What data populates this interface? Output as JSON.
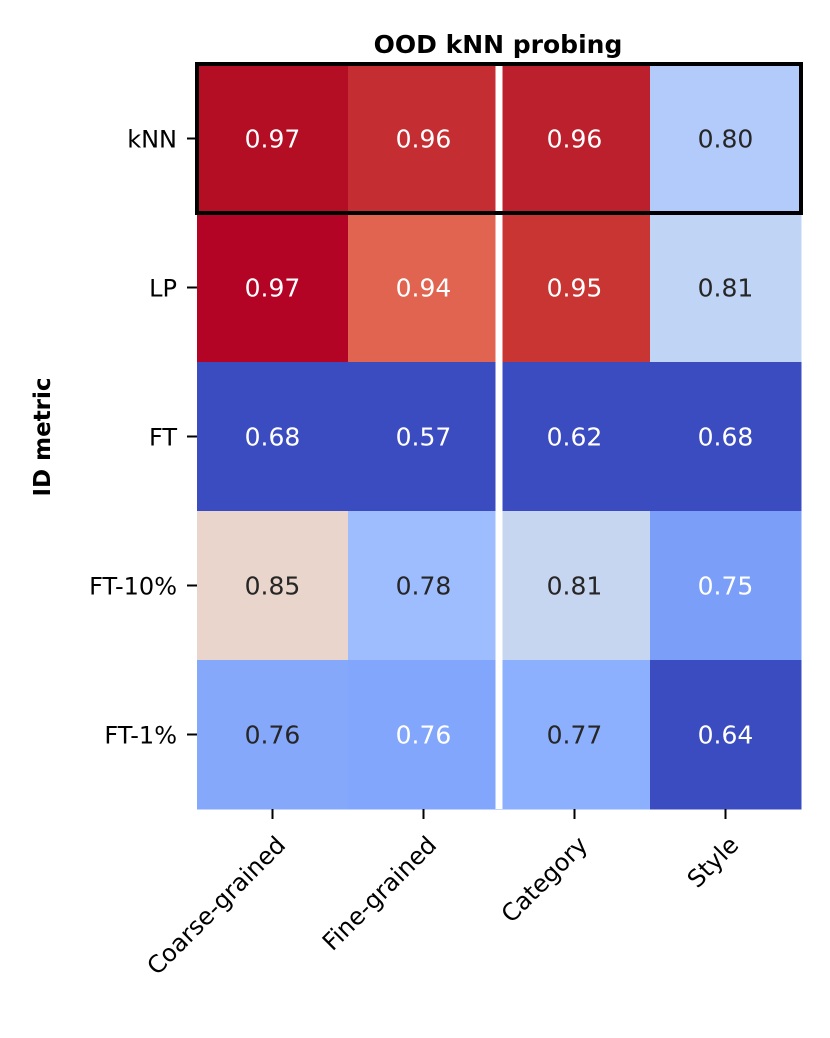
{
  "chart_data": {
    "type": "heatmap",
    "title": "OOD kNN probing",
    "xlabel": "",
    "ylabel": "ID metric",
    "rows": [
      "kNN",
      "LP",
      "FT",
      "FT-10%",
      "FT-1%"
    ],
    "columns": [
      "Coarse-grained",
      "Fine-grained",
      "Category",
      "Style"
    ],
    "values": [
      [
        0.97,
        0.96,
        0.96,
        0.8
      ],
      [
        0.97,
        0.94,
        0.95,
        0.81
      ],
      [
        0.68,
        0.57,
        0.62,
        0.68
      ],
      [
        0.85,
        0.78,
        0.81,
        0.75
      ],
      [
        0.76,
        0.76,
        0.77,
        0.64
      ]
    ],
    "value_labels": [
      [
        "0.97",
        "0.96",
        "0.96",
        "0.80"
      ],
      [
        "0.97",
        "0.94",
        "0.95",
        "0.81"
      ],
      [
        "0.68",
        "0.57",
        "0.62",
        "0.68"
      ],
      [
        "0.85",
        "0.78",
        "0.81",
        "0.75"
      ],
      [
        "0.76",
        "0.76",
        "0.77",
        "0.64"
      ]
    ],
    "cell_colors": [
      [
        "#b40e25",
        "#c42d31",
        "#bd202d",
        "#b2cbfb"
      ],
      [
        "#b40426",
        "#e0644f",
        "#c83532",
        "#c0d4f5"
      ],
      [
        "#3b4cc0",
        "#3b4cc0",
        "#3b4cc0",
        "#3b4cc0"
      ],
      [
        "#e9d5cb",
        "#9dbdfe",
        "#c7d6f0",
        "#7b9ff9"
      ],
      [
        "#85a8fb",
        "#82a6fb",
        "#8caffe",
        "#3b4cc0"
      ]
    ],
    "text_colors": [
      [
        "#ffffff",
        "#ffffff",
        "#ffffff",
        "#262626"
      ],
      [
        "#ffffff",
        "#ffffff",
        "#ffffff",
        "#262626"
      ],
      [
        "#ffffff",
        "#ffffff",
        "#ffffff",
        "#ffffff"
      ],
      [
        "#262626",
        "#262626",
        "#262626",
        "#ffffff"
      ],
      [
        "#262626",
        "#ffffff",
        "#262626",
        "#ffffff"
      ]
    ],
    "highlighted_row": "kNN",
    "separator_after_column": "Fine-grained",
    "colormap": "coolwarm",
    "colorbar": false
  }
}
